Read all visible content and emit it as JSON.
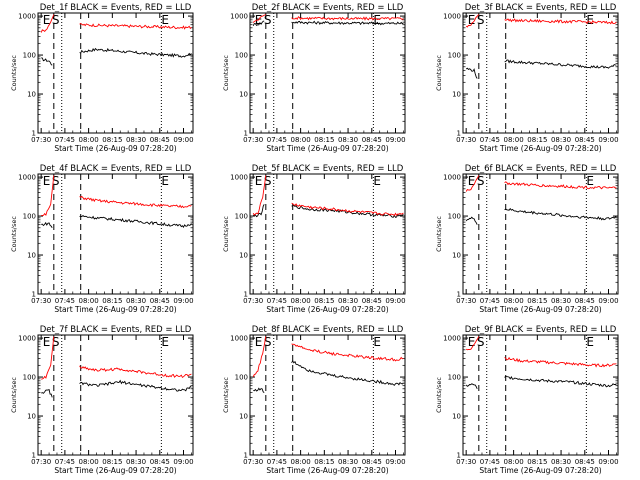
{
  "figure": {
    "xtick_labels": [
      "07:30",
      "07:45",
      "08:00",
      "08:15",
      "08:30",
      "08:45",
      "09:00"
    ],
    "ytick_labels": [
      "1",
      "10",
      "100",
      "1000"
    ],
    "xlabel": "Start Time (26-Aug-09 07:28:20)",
    "ylabel": "Counts/sec",
    "marker_labels": {
      "E": "E",
      "S": "S"
    }
  },
  "chart_data": [
    {
      "title": "Det_1f BLACK = Events, RED = LLD",
      "type": "line",
      "xlabel": "Start Time (26-Aug-09 07:28:20)",
      "ylabel": "Counts/sec",
      "xticks": [
        "07:30",
        "07:45",
        "08:00",
        "08:15",
        "08:30",
        "08:45",
        "09:00"
      ],
      "ylim": [
        1,
        1200
      ],
      "yscale": "log",
      "markers": {
        "E": [
          "07:31",
          "08:46"
        ],
        "S": [
          "07:38"
        ]
      },
      "dashed_lines": [
        "07:38",
        "07:55"
      ],
      "dotted_lines": [
        "07:43",
        "08:46"
      ],
      "series": [
        {
          "name": "Events",
          "color": "#000000",
          "x": [
            "07:30",
            "07:35",
            "07:37",
            "07:55",
            "08:05",
            "08:20",
            "08:35",
            "08:50",
            "09:00",
            "09:05"
          ],
          "y": [
            80,
            70,
            55,
            120,
            140,
            125,
            110,
            100,
            95,
            110
          ]
        },
        {
          "name": "LLD",
          "color": "#ff0000",
          "x": [
            "07:30",
            "07:33",
            "07:36",
            "07:38",
            "07:55",
            "08:05",
            "08:20",
            "08:35",
            "08:50",
            "09:00",
            "09:05"
          ],
          "y": [
            400,
            450,
            700,
            1100,
            600,
            580,
            560,
            540,
            520,
            510,
            520
          ]
        }
      ]
    },
    {
      "title": "Det_2f BLACK = Events, RED = LLD",
      "type": "line",
      "xlabel": "Start Time (26-Aug-09 07:28:20)",
      "ylabel": "Counts/sec",
      "xticks": [
        "07:30",
        "07:45",
        "08:00",
        "08:15",
        "08:30",
        "08:45",
        "09:00"
      ],
      "ylim": [
        1,
        1200
      ],
      "yscale": "log",
      "markers": {
        "E": [
          "07:31",
          "08:46"
        ],
        "S": [
          "07:38"
        ]
      },
      "dashed_lines": [
        "07:38",
        "07:55"
      ],
      "dotted_lines": [
        "07:43",
        "08:46"
      ],
      "series": [
        {
          "name": "Events",
          "color": "#000000",
          "x": [
            "07:30",
            "07:35",
            "07:37",
            "07:55",
            "08:05",
            "08:20",
            "08:35",
            "08:50",
            "09:00",
            "09:05"
          ],
          "y": [
            600,
            650,
            750,
            700,
            680,
            670,
            660,
            650,
            650,
            650
          ]
        },
        {
          "name": "LLD",
          "color": "#ff0000",
          "x": [
            "07:30",
            "07:33",
            "07:36",
            "07:38",
            "07:55",
            "08:05",
            "08:20",
            "08:35",
            "08:50",
            "09:00",
            "09:05"
          ],
          "y": [
            700,
            800,
            1000,
            1100,
            900,
            880,
            870,
            860,
            860,
            860,
            860
          ]
        }
      ]
    },
    {
      "title": "Det_3f BLACK = Events, RED = LLD",
      "type": "line",
      "xlabel": "Start Time (26-Aug-09 07:28:20)",
      "ylabel": "Counts/sec",
      "xticks": [
        "07:30",
        "07:45",
        "08:00",
        "08:15",
        "08:30",
        "08:45",
        "09:00"
      ],
      "ylim": [
        1,
        1200
      ],
      "yscale": "log",
      "markers": {
        "E": [
          "07:31",
          "08:46"
        ],
        "S": [
          "07:38"
        ]
      },
      "dashed_lines": [
        "07:38",
        "07:55"
      ],
      "dotted_lines": [
        "07:43",
        "08:46"
      ],
      "series": [
        {
          "name": "Events",
          "color": "#000000",
          "x": [
            "07:30",
            "07:35",
            "07:37",
            "07:55",
            "08:05",
            "08:20",
            "08:35",
            "08:50",
            "09:00",
            "09:05"
          ],
          "y": [
            45,
            40,
            25,
            70,
            65,
            60,
            55,
            50,
            48,
            55
          ]
        },
        {
          "name": "LLD",
          "color": "#ff0000",
          "x": [
            "07:30",
            "07:33",
            "07:36",
            "07:38",
            "07:55",
            "08:05",
            "08:20",
            "08:35",
            "08:50",
            "09:00",
            "09:05"
          ],
          "y": [
            550,
            600,
            900,
            1100,
            800,
            760,
            740,
            720,
            700,
            680,
            700
          ]
        }
      ]
    },
    {
      "title": "Det_4f BLACK = Events, RED = LLD",
      "type": "line",
      "xlabel": "Start Time (26-Aug-09 07:28:20)",
      "ylabel": "Counts/sec",
      "xticks": [
        "07:30",
        "07:45",
        "08:00",
        "08:15",
        "08:30",
        "08:45",
        "09:00"
      ],
      "ylim": [
        1,
        1200
      ],
      "yscale": "log",
      "markers": {
        "E": [
          "07:31",
          "08:46"
        ],
        "S": [
          "07:38"
        ]
      },
      "dashed_lines": [
        "07:38",
        "07:55"
      ],
      "dotted_lines": [
        "07:43",
        "08:46"
      ],
      "series": [
        {
          "name": "Events",
          "color": "#000000",
          "x": [
            "07:30",
            "07:35",
            "07:37",
            "07:55",
            "08:05",
            "08:20",
            "08:35",
            "08:50",
            "09:00",
            "09:05"
          ],
          "y": [
            60,
            65,
            50,
            100,
            90,
            80,
            70,
            60,
            55,
            65
          ]
        },
        {
          "name": "LLD",
          "color": "#ff0000",
          "x": [
            "07:30",
            "07:33",
            "07:36",
            "07:38",
            "07:55",
            "08:05",
            "08:20",
            "08:35",
            "08:50",
            "09:00",
            "09:05"
          ],
          "y": [
            100,
            110,
            200,
            1100,
            300,
            250,
            220,
            200,
            180,
            175,
            190
          ]
        }
      ]
    },
    {
      "title": "Det_5f BLACK = Events, RED = LLD",
      "type": "line",
      "xlabel": "Start Time (26-Aug-09 07:28:20)",
      "ylabel": "Counts/sec",
      "xticks": [
        "07:30",
        "07:45",
        "08:00",
        "08:15",
        "08:30",
        "08:45",
        "09:00"
      ],
      "ylim": [
        1,
        1200
      ],
      "yscale": "log",
      "markers": {
        "E": [
          "07:31",
          "08:46"
        ],
        "S": [
          "07:38"
        ]
      },
      "dashed_lines": [
        "07:38",
        "07:55"
      ],
      "dotted_lines": [
        "07:43",
        "08:46"
      ],
      "series": [
        {
          "name": "Events",
          "color": "#000000",
          "x": [
            "07:30",
            "07:35",
            "07:37",
            "07:55",
            "08:05",
            "08:20",
            "08:35",
            "08:50",
            "09:00",
            "09:05"
          ],
          "y": [
            100,
            110,
            200,
            180,
            150,
            140,
            120,
            105,
            100,
            110
          ]
        },
        {
          "name": "LLD",
          "color": "#ff0000",
          "x": [
            "07:30",
            "07:33",
            "07:36",
            "07:38",
            "07:55",
            "08:05",
            "08:20",
            "08:35",
            "08:50",
            "09:00",
            "09:05"
          ],
          "y": [
            110,
            120,
            300,
            1100,
            200,
            170,
            150,
            130,
            115,
            110,
            120
          ]
        }
      ]
    },
    {
      "title": "Det_6f BLACK = Events, RED = LLD",
      "type": "line",
      "xlabel": "Start Time (26-Aug-09 07:28:20)",
      "ylabel": "Counts/sec",
      "xticks": [
        "07:30",
        "07:45",
        "08:00",
        "08:15",
        "08:30",
        "08:45",
        "09:00"
      ],
      "ylim": [
        1,
        1200
      ],
      "yscale": "log",
      "markers": {
        "E": [
          "07:31",
          "08:46"
        ],
        "S": [
          "07:38"
        ]
      },
      "dashed_lines": [
        "07:38",
        "07:55"
      ],
      "dotted_lines": [
        "07:43",
        "08:46"
      ],
      "series": [
        {
          "name": "Events",
          "color": "#000000",
          "x": [
            "07:30",
            "07:35",
            "07:37",
            "07:55",
            "08:05",
            "08:20",
            "08:35",
            "08:50",
            "09:00",
            "09:05"
          ],
          "y": [
            80,
            90,
            60,
            150,
            130,
            115,
            100,
            90,
            85,
            95
          ]
        },
        {
          "name": "LLD",
          "color": "#ff0000",
          "x": [
            "07:30",
            "07:33",
            "07:36",
            "07:38",
            "07:55",
            "08:05",
            "08:20",
            "08:35",
            "08:50",
            "09:00",
            "09:05"
          ],
          "y": [
            450,
            500,
            800,
            1100,
            700,
            650,
            600,
            570,
            540,
            520,
            540
          ]
        }
      ]
    },
    {
      "title": "Det_7f BLACK = Events, RED = LLD",
      "type": "line",
      "xlabel": "Start Time (26-Aug-09 07:28:20)",
      "ylabel": "Counts/sec",
      "xticks": [
        "07:30",
        "07:45",
        "08:00",
        "08:15",
        "08:30",
        "08:45",
        "09:00"
      ],
      "ylim": [
        1,
        1200
      ],
      "yscale": "log",
      "markers": {
        "E": [
          "07:31",
          "08:46"
        ],
        "S": [
          "07:38"
        ]
      },
      "dashed_lines": [
        "07:38",
        "07:55"
      ],
      "dotted_lines": [
        "07:43",
        "08:46"
      ],
      "series": [
        {
          "name": "Events",
          "color": "#000000",
          "x": [
            "07:30",
            "07:35",
            "07:37",
            "07:55",
            "08:05",
            "08:20",
            "08:35",
            "08:50",
            "09:00",
            "09:05"
          ],
          "y": [
            40,
            45,
            30,
            70,
            60,
            75,
            60,
            50,
            45,
            55
          ]
        },
        {
          "name": "LLD",
          "color": "#ff0000",
          "x": [
            "07:30",
            "07:33",
            "07:36",
            "07:38",
            "07:55",
            "08:05",
            "08:20",
            "08:35",
            "08:50",
            "09:00",
            "09:05"
          ],
          "y": [
            90,
            100,
            200,
            1100,
            180,
            150,
            160,
            130,
            110,
            105,
            120
          ]
        }
      ]
    },
    {
      "title": "Det_8f BLACK = Events, RED = LLD",
      "type": "line",
      "xlabel": "Start Time (26-Aug-09 07:28:20)",
      "ylabel": "Counts/sec",
      "xticks": [
        "07:30",
        "07:45",
        "08:00",
        "08:15",
        "08:30",
        "08:45",
        "09:00"
      ],
      "ylim": [
        1,
        1200
      ],
      "yscale": "log",
      "markers": {
        "E": [
          "07:31",
          "08:46"
        ],
        "S": [
          "07:38"
        ]
      },
      "dashed_lines": [
        "07:38",
        "07:55"
      ],
      "dotted_lines": [
        "07:43",
        "08:46"
      ],
      "series": [
        {
          "name": "Events",
          "color": "#000000",
          "x": [
            "07:30",
            "07:35",
            "07:37",
            "07:55",
            "08:05",
            "08:20",
            "08:35",
            "08:50",
            "09:00",
            "09:05"
          ],
          "y": [
            45,
            50,
            40,
            250,
            150,
            110,
            90,
            75,
            65,
            70
          ]
        },
        {
          "name": "LLD",
          "color": "#ff0000",
          "x": [
            "07:30",
            "07:33",
            "07:36",
            "07:38",
            "07:55",
            "08:05",
            "08:20",
            "08:35",
            "08:50",
            "09:00",
            "09:05"
          ],
          "y": [
            100,
            150,
            400,
            1100,
            700,
            500,
            400,
            340,
            300,
            280,
            300
          ]
        }
      ]
    },
    {
      "title": "Det_9f BLACK = Events, RED = LLD",
      "type": "line",
      "xlabel": "Start Time (26-Aug-09 07:28:20)",
      "ylabel": "Counts/sec",
      "xticks": [
        "07:30",
        "07:45",
        "08:00",
        "08:15",
        "08:30",
        "08:45",
        "09:00"
      ],
      "ylim": [
        1,
        1200
      ],
      "yscale": "log",
      "markers": {
        "E": [
          "07:31",
          "08:46"
        ],
        "S": [
          "07:38"
        ]
      },
      "dashed_lines": [
        "07:38",
        "07:55"
      ],
      "dotted_lines": [
        "07:43",
        "08:46"
      ],
      "series": [
        {
          "name": "Events",
          "color": "#000000",
          "x": [
            "07:30",
            "07:35",
            "07:37",
            "07:55",
            "08:05",
            "08:20",
            "08:35",
            "08:50",
            "09:00",
            "09:05"
          ],
          "y": [
            60,
            65,
            50,
            100,
            90,
            80,
            75,
            65,
            60,
            65
          ]
        },
        {
          "name": "LLD",
          "color": "#ff0000",
          "x": [
            "07:30",
            "07:33",
            "07:36",
            "07:38",
            "07:55",
            "08:05",
            "08:20",
            "08:35",
            "08:50",
            "09:00",
            "09:05"
          ],
          "y": [
            500,
            550,
            800,
            1100,
            300,
            260,
            240,
            220,
            200,
            200,
            220
          ]
        }
      ]
    }
  ]
}
